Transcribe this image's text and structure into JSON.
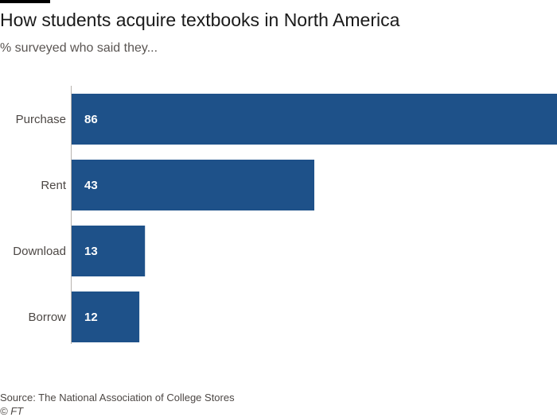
{
  "chart_data": {
    "type": "bar",
    "orientation": "horizontal",
    "title": "How students acquire textbooks in North America",
    "subtitle": "% surveyed who said they...",
    "categories": [
      "Purchase",
      "Rent",
      "Download",
      "Borrow"
    ],
    "values": [
      86,
      43,
      13,
      12
    ],
    "xlim": [
      0,
      86
    ],
    "grid": false,
    "bar_color": "#1e5189",
    "value_label_color": "#ffffff"
  },
  "footer": {
    "source": "Source: The National Association of College Stores",
    "copyright": "© FT"
  }
}
